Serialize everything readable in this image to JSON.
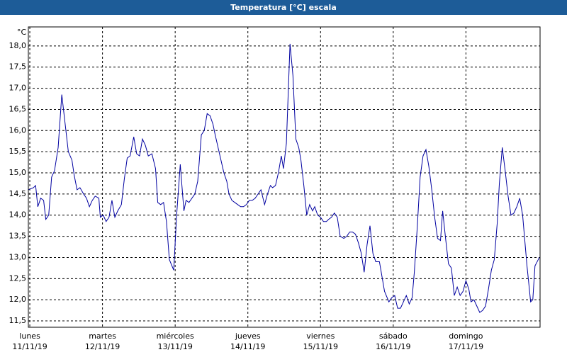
{
  "window_title": "Temperatura [°C] escala",
  "chart_data": {
    "type": "line",
    "unit_label": "°C",
    "color": "#0000a0",
    "grid": true,
    "ylim": [
      11.35,
      18.45
    ],
    "yticks": [
      {
        "value": 11.5,
        "label": "11,5"
      },
      {
        "value": 12,
        "label": "12,0"
      },
      {
        "value": 12.5,
        "label": "12,5"
      },
      {
        "value": 13,
        "label": "13,0"
      },
      {
        "value": 13.5,
        "label": "13,5"
      },
      {
        "value": 14,
        "label": "14,0"
      },
      {
        "value": 14.5,
        "label": "14,5"
      },
      {
        "value": 15,
        "label": "15,0"
      },
      {
        "value": 15.5,
        "label": "15,5"
      },
      {
        "value": 16,
        "label": "16,0"
      },
      {
        "value": 16.5,
        "label": "16,5"
      },
      {
        "value": 17,
        "label": "17,0"
      },
      {
        "value": 17.5,
        "label": "17,5"
      },
      {
        "value": 18,
        "label": "18,0"
      }
    ],
    "xlim": [
      -0.02,
      7.02
    ],
    "xticks": [
      {
        "value": 0,
        "label": "lunes"
      },
      {
        "value": 1,
        "label": "martes"
      },
      {
        "value": 2,
        "label": "miércoles"
      },
      {
        "value": 3,
        "label": "jueves"
      },
      {
        "value": 4,
        "label": "viernes"
      },
      {
        "value": 5,
        "label": "sábado"
      },
      {
        "value": 6,
        "label": "domingo"
      }
    ],
    "xtick_dates": [
      "11/11/19",
      "12/11/19",
      "13/11/19",
      "14/11/19",
      "15/11/19",
      "16/11/19",
      "17/11/19"
    ],
    "x": [
      -0.02,
      0.05,
      0.08,
      0.11,
      0.15,
      0.19,
      0.22,
      0.26,
      0.3,
      0.34,
      0.39,
      0.44,
      0.49,
      0.53,
      0.58,
      0.61,
      0.65,
      0.69,
      0.74,
      0.78,
      0.82,
      0.86,
      0.9,
      0.95,
      0.97,
      1.01,
      1.05,
      1.09,
      1.13,
      1.17,
      1.21,
      1.26,
      1.3,
      1.34,
      1.38,
      1.43,
      1.47,
      1.51,
      1.55,
      1.59,
      1.63,
      1.68,
      1.73,
      1.76,
      1.8,
      1.84,
      1.88,
      1.92,
      1.98,
      2.02,
      2.07,
      2.12,
      2.15,
      2.19,
      2.23,
      2.27,
      2.31,
      2.36,
      2.4,
      2.44,
      2.48,
      2.52,
      2.55,
      2.59,
      2.63,
      2.67,
      2.71,
      2.74,
      2.78,
      2.82,
      2.86,
      2.9,
      2.94,
      2.98,
      3.02,
      3.06,
      3.1,
      3.14,
      3.18,
      3.23,
      3.27,
      3.31,
      3.34,
      3.38,
      3.42,
      3.46,
      3.49,
      3.53,
      3.58,
      3.62,
      3.66,
      3.7,
      3.73,
      3.77,
      3.81,
      3.85,
      3.89,
      3.92,
      3.96,
      4.0,
      4.04,
      4.08,
      4.11,
      4.15,
      4.19,
      4.23,
      4.27,
      4.32,
      4.36,
      4.4,
      4.44,
      4.48,
      4.52,
      4.56,
      4.6,
      4.64,
      4.68,
      4.72,
      4.76,
      4.81,
      4.85,
      4.88,
      4.94,
      4.98,
      5.02,
      5.06,
      5.1,
      5.14,
      5.18,
      5.22,
      5.26,
      5.29,
      5.33,
      5.37,
      5.41,
      5.45,
      5.49,
      5.53,
      5.57,
      5.61,
      5.65,
      5.68,
      5.72,
      5.76,
      5.8,
      5.84,
      5.88,
      5.92,
      5.96,
      6.0,
      6.04,
      6.07,
      6.11,
      6.15,
      6.19,
      6.23,
      6.27,
      6.31,
      6.35,
      6.39,
      6.43,
      6.46,
      6.5,
      6.54,
      6.58,
      6.62,
      6.66,
      6.7,
      6.74,
      6.78,
      6.82,
      6.84,
      6.87,
      6.89,
      6.92,
      6.95,
      6.98,
      7.01
    ],
    "values": [
      14.6,
      14.65,
      14.7,
      14.2,
      14.4,
      14.35,
      13.9,
      14.0,
      14.9,
      15.05,
      15.6,
      16.85,
      16.1,
      15.5,
      15.3,
      14.95,
      14.6,
      14.65,
      14.5,
      14.4,
      14.2,
      14.35,
      14.45,
      14.4,
      13.95,
      14.0,
      13.85,
      13.95,
      14.35,
      13.95,
      14.1,
      14.25,
      14.85,
      15.35,
      15.4,
      15.85,
      15.45,
      15.4,
      15.8,
      15.65,
      15.4,
      15.45,
      15.1,
      14.3,
      14.25,
      14.3,
      13.85,
      12.95,
      12.7,
      14.0,
      15.2,
      14.1,
      14.35,
      14.3,
      14.4,
      14.5,
      14.8,
      15.9,
      16.0,
      16.4,
      16.35,
      16.15,
      15.9,
      15.6,
      15.3,
      15.0,
      14.8,
      14.5,
      14.35,
      14.3,
      14.25,
      14.2,
      14.2,
      14.25,
      14.35,
      14.35,
      14.4,
      14.5,
      14.6,
      14.25,
      14.5,
      14.7,
      14.65,
      14.7,
      15.0,
      15.4,
      15.1,
      15.7,
      18.05,
      17.3,
      15.8,
      15.6,
      15.3,
      14.7,
      14.0,
      14.25,
      14.1,
      14.2,
      14.0,
      13.95,
      13.85,
      13.85,
      13.9,
      13.95,
      14.05,
      13.95,
      13.5,
      13.45,
      13.5,
      13.6,
      13.6,
      13.55,
      13.35,
      13.1,
      12.65,
      13.3,
      13.75,
      13.1,
      12.9,
      12.9,
      12.5,
      12.2,
      11.95,
      12.05,
      12.1,
      11.8,
      11.8,
      11.95,
      12.1,
      11.9,
      12.05,
      12.65,
      13.7,
      14.9,
      15.4,
      15.55,
      15.15,
      14.6,
      13.95,
      13.45,
      13.4,
      14.1,
      13.45,
      12.85,
      12.75,
      12.1,
      12.3,
      12.1,
      12.2,
      12.45,
      12.25,
      11.95,
      12.0,
      11.85,
      11.7,
      11.75,
      11.85,
      12.25,
      12.7,
      12.95,
      13.8,
      14.75,
      15.6,
      15.05,
      14.45,
      14.0,
      14.05,
      14.2,
      14.4,
      14.0,
      13.2,
      12.8,
      12.3,
      11.95,
      12.0,
      12.8,
      12.9,
      13.0
    ]
  }
}
